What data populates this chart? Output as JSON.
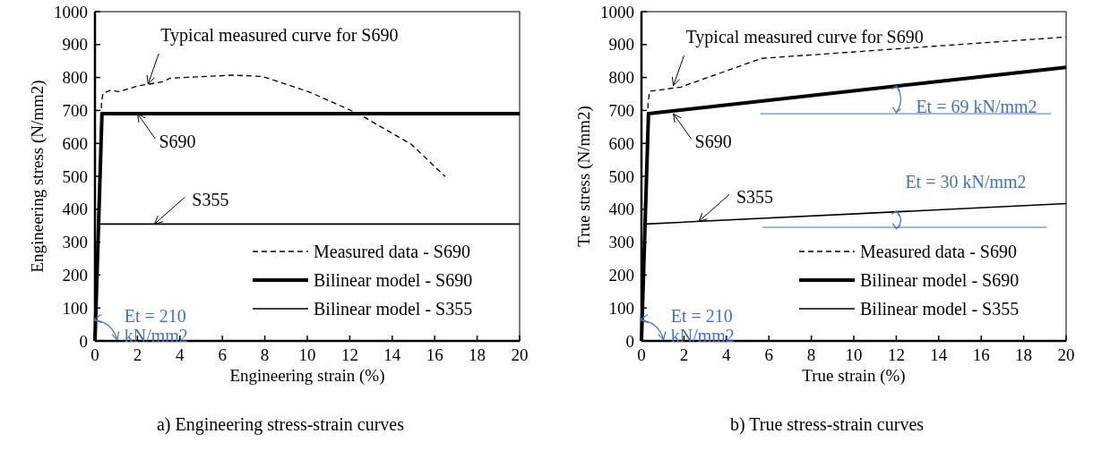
{
  "chart_data": [
    {
      "type": "line",
      "title": "a) Engineering stress-strain curves",
      "xlabel": "Engineering strain (%)",
      "ylabel": "Engineering stress (N/mm2)",
      "xlim": [
        0,
        20
      ],
      "ylim": [
        0,
        1000
      ],
      "xticks": [
        0,
        2,
        4,
        6,
        8,
        10,
        12,
        14,
        16,
        18,
        20
      ],
      "yticks": [
        0,
        100,
        200,
        300,
        400,
        500,
        600,
        700,
        800,
        900,
        1000
      ],
      "legend": "bottom right",
      "grid": false,
      "series": [
        {
          "name": "Measured data - S690",
          "color": "#000000",
          "line_style": "dashed",
          "x": [
            0,
            0.31,
            0.38,
            0.73,
            1.15,
            2.0,
            3.19,
            3.54,
            6.5,
            7.9,
            10.1,
            12.4,
            14.9,
            16.5
          ],
          "values": [
            0,
            725,
            752,
            761,
            757,
            774,
            787,
            798,
            807,
            803,
            756,
            690,
            597,
            499
          ]
        },
        {
          "name": "Bilinear model - S690",
          "color": "#000000",
          "line_style": "solid",
          "x": [
            0,
            0.33,
            20
          ],
          "values": [
            0,
            690,
            690
          ]
        },
        {
          "name": "Bilinear model - S355",
          "color": "#000000",
          "line_style": "solid",
          "x": [
            0,
            0.17,
            20
          ],
          "values": [
            0,
            355,
            355
          ]
        }
      ],
      "annotations": [
        {
          "text": "Typical measured curve for S690",
          "x": 2.5,
          "y": 780
        },
        {
          "text": "S690",
          "x": 2,
          "y": 690
        },
        {
          "text": "S355",
          "x": 2.8,
          "y": 355
        },
        {
          "text": "Et = 210 kN/mm2",
          "x": 0.2,
          "y": 80
        }
      ]
    },
    {
      "type": "line",
      "title": "b) True stress-strain curves",
      "xlabel": "True strain (%)",
      "ylabel": "True stress (N/mm2)",
      "xlim": [
        0,
        20
      ],
      "ylim": [
        0,
        1000
      ],
      "xticks": [
        0,
        2,
        4,
        6,
        8,
        10,
        12,
        14,
        16,
        18,
        20
      ],
      "yticks": [
        0,
        100,
        200,
        300,
        400,
        500,
        600,
        700,
        800,
        900,
        1000
      ],
      "legend": "bottom right",
      "grid": false,
      "series": [
        {
          "name": "Measured data - S690",
          "color": "#000000",
          "line_style": "dashed",
          "x": [
            0,
            0.31,
            0.38,
            1.86,
            5.65,
            20
          ],
          "values": [
            0,
            721,
            758,
            771,
            858,
            923
          ]
        },
        {
          "name": "Bilinear model - S690",
          "color": "#000000",
          "line_style": "solid",
          "x": [
            0,
            0.33,
            20
          ],
          "values": [
            0,
            690,
            831
          ]
        },
        {
          "name": "Bilinear model - S355",
          "color": "#000000",
          "line_style": "solid",
          "x": [
            0,
            0.17,
            20
          ],
          "values": [
            0,
            355,
            417
          ]
        },
        {
          "color": "#4472c4",
          "line_style": "solid",
          "x": [
            5.6,
            19.3
          ],
          "values": [
            690,
            690
          ]
        },
        {
          "color": "#4472c4",
          "line_style": "solid",
          "x": [
            5.7,
            19.1
          ],
          "values": [
            345,
            345
          ]
        }
      ],
      "annotations": [
        {
          "text": "Typical measured curve for S690",
          "x": 1.5,
          "y": 775
        },
        {
          "text": "S690",
          "x": 1.5,
          "y": 690
        },
        {
          "text": "S355",
          "x": 2.7,
          "y": 363
        },
        {
          "text": "Et = 210 kN/mm2",
          "x": 0.2,
          "y": 80
        },
        {
          "text": "Et = 69 kN/mm2",
          "x": 12,
          "y": 775
        },
        {
          "text": "Et = 30 kN/mm2",
          "x": 12,
          "y": 395
        }
      ]
    }
  ]
}
